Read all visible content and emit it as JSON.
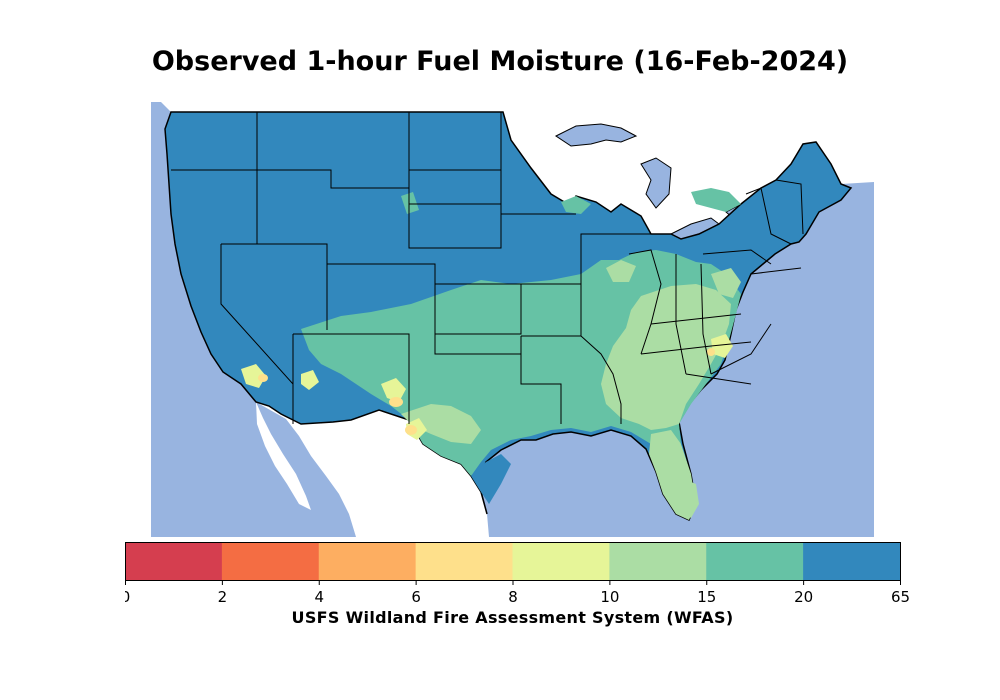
{
  "title": "Observed 1-hour Fuel Moisture (16-Feb-2024)",
  "credit": "USFS Wildland Fire Assessment System (WFAS)",
  "colorbar": {
    "ticks": [
      "0",
      "2",
      "4",
      "6",
      "8",
      "10",
      "15",
      "20",
      "65"
    ],
    "bins": [
      {
        "range": "0-2",
        "color": "#d53e4f"
      },
      {
        "range": "2-4",
        "color": "#f46d43"
      },
      {
        "range": "4-6",
        "color": "#fdae61"
      },
      {
        "range": "6-8",
        "color": "#fee08b"
      },
      {
        "range": "8-10",
        "color": "#e6f598"
      },
      {
        "range": "10-15",
        "color": "#abdda4"
      },
      {
        "range": "15-20",
        "color": "#66c2a5"
      },
      {
        "range": "20-65",
        "color": "#3288bd"
      }
    ]
  },
  "colors": {
    "water": "#98b4e0",
    "outside_land": "#ffffff",
    "state_border": "#000000"
  }
}
